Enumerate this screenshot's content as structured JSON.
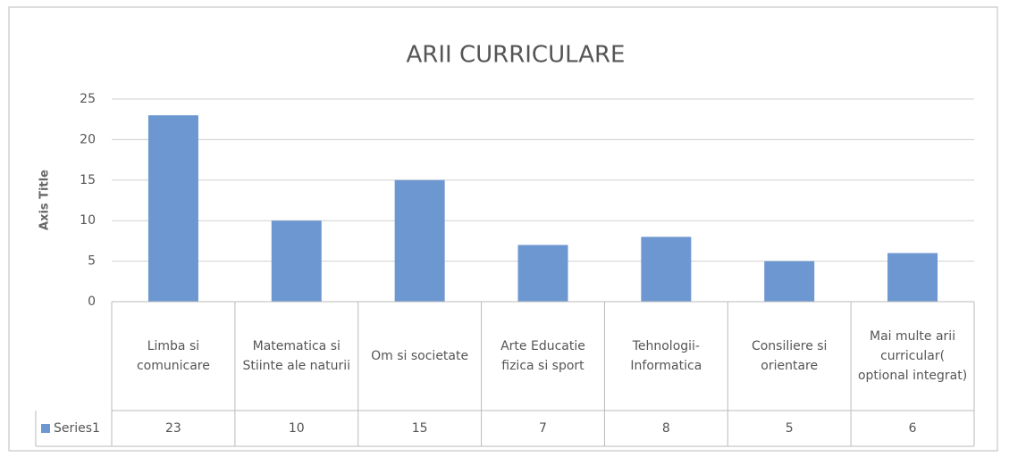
{
  "chart_data": {
    "type": "bar",
    "title": "ARII CURRICULARE",
    "y_label": "Axis Title",
    "categories": [
      "Limba si comunicare",
      "Matematica si Stiinte ale naturii",
      "Om si societate",
      "Arte Educatie fizica si sport",
      "Tehnologii-Informatica",
      "Consiliere si orientare",
      "Mai multe arii curricular( optional integrat)"
    ],
    "series": [
      {
        "name": "Series1",
        "color": "#6d97d0",
        "values": [
          23,
          10,
          15,
          7,
          8,
          5,
          6
        ]
      }
    ],
    "ylim": [
      0,
      25
    ],
    "yticks": [
      0,
      5,
      10,
      15,
      20,
      25
    ],
    "grid": true,
    "data_table": true
  }
}
